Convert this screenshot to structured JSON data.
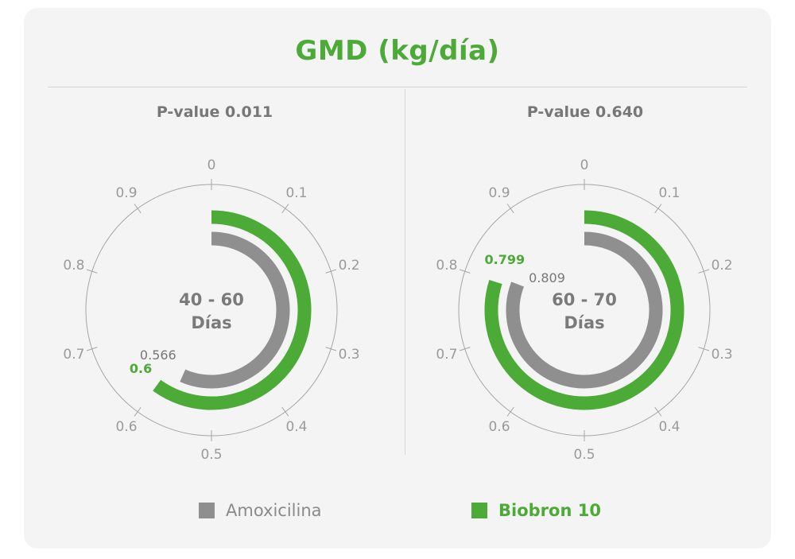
{
  "title": "GMD (kg/día)",
  "colors": {
    "amoxicilina": "#8f8f8f",
    "biobron": "#4caa37",
    "axis": "#a6a6a6"
  },
  "legend": [
    {
      "name": "Amoxicilina",
      "color": "#8f8f8f"
    },
    {
      "name": "Biobron 10",
      "color": "#4caa37"
    }
  ],
  "chart_data": [
    {
      "type": "radial-bar",
      "pvalue_label": "P-value 0.011",
      "center_label_1": "40 - 60",
      "center_label_2": "Días",
      "ticks": [
        "0",
        "0.1",
        "0.2",
        "0.3",
        "0.4",
        "0.5",
        "0.6",
        "0.7",
        "0.8",
        "0.9"
      ],
      "range": [
        0,
        1
      ],
      "series": [
        {
          "name": "Amoxicilina",
          "value": 0.566,
          "label": "0.566"
        },
        {
          "name": "Biobron 10",
          "value": 0.6,
          "label": "0.6"
        }
      ]
    },
    {
      "type": "radial-bar",
      "pvalue_label": "P-value 0.640",
      "center_label_1": "60 - 70",
      "center_label_2": "Días",
      "ticks": [
        "0",
        "0.1",
        "0.2",
        "0.3",
        "0.4",
        "0.5",
        "0.6",
        "0.7",
        "0.8",
        "0.9"
      ],
      "range": [
        0,
        1
      ],
      "series": [
        {
          "name": "Amoxicilina",
          "value": 0.809,
          "label": "0.809"
        },
        {
          "name": "Biobron 10",
          "value": 0.799,
          "label": "0.799"
        }
      ]
    }
  ]
}
